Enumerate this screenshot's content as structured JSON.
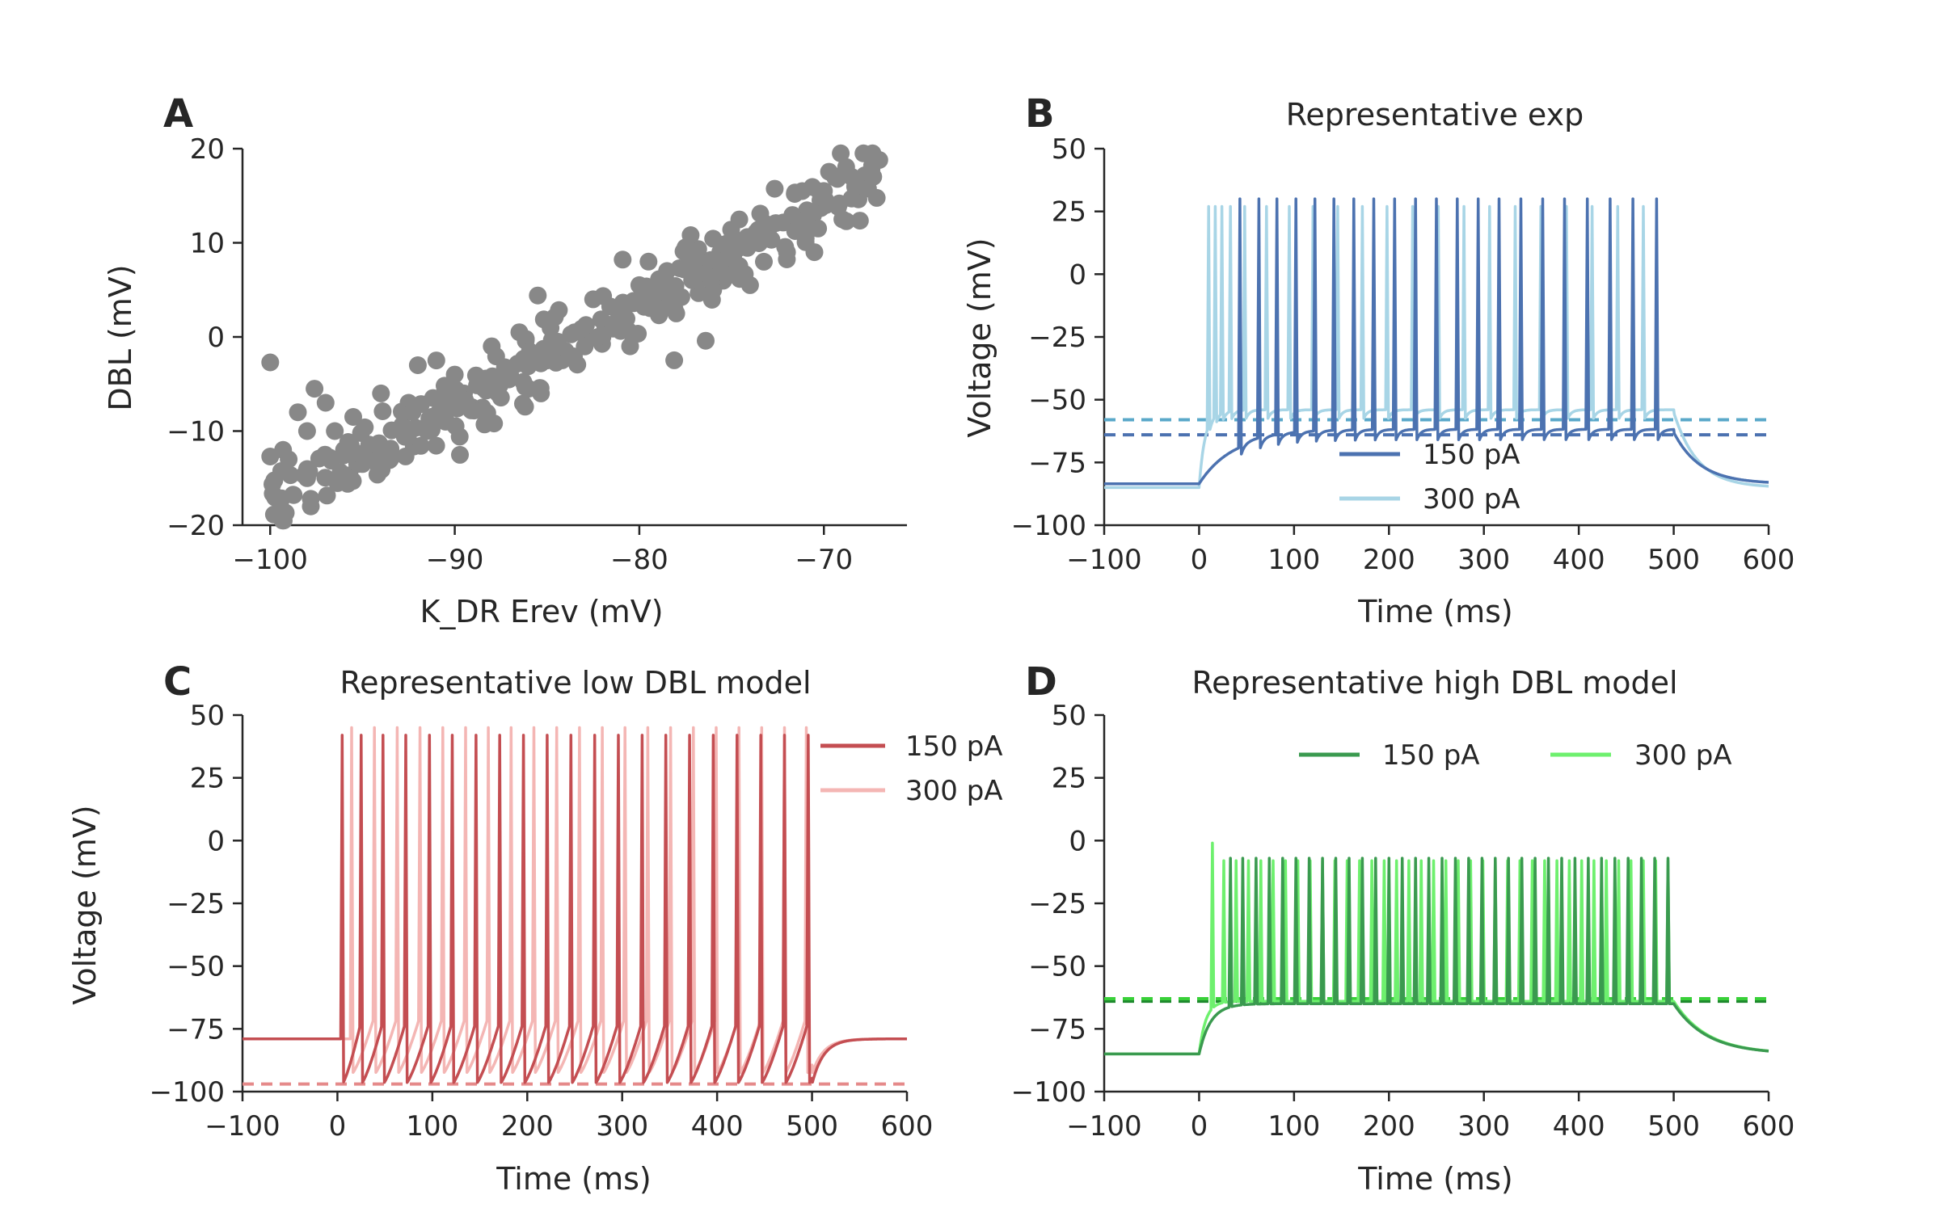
{
  "chart_data": [
    {
      "panel": "A",
      "type": "scatter",
      "title": "",
      "xlabel": "K_DR Erev (mV)",
      "ylabel": "DBL (mV)",
      "xlim": [
        -101.5,
        -65.5
      ],
      "ylim": [
        -20,
        20
      ],
      "xticks": [
        -100,
        -90,
        -80,
        -70
      ],
      "yticks": [
        -20,
        -10,
        0,
        10,
        20
      ],
      "grid": false,
      "point_color": "#888888",
      "trend": {
        "slope": 1.05,
        "intercept": 87.5,
        "x_range": [
          -100,
          -67
        ],
        "noise_sd": 1.9,
        "count": 300
      },
      "points": [
        {
          "x": -100,
          "y": -2.7
        },
        {
          "x": -100,
          "y": -12.7
        },
        {
          "x": -99.3,
          "y": -12
        },
        {
          "x": -99,
          "y": -13
        },
        {
          "x": -98.5,
          "y": -8
        },
        {
          "x": -98,
          "y": -10
        },
        {
          "x": -98,
          "y": -15
        },
        {
          "x": -97.8,
          "y": -18
        },
        {
          "x": -97.8,
          "y": -17.2
        },
        {
          "x": -97.6,
          "y": -5.5
        },
        {
          "x": -97,
          "y": -7
        },
        {
          "x": -96.5,
          "y": -10
        },
        {
          "x": -96,
          "y": -12
        },
        {
          "x": -95.5,
          "y": -8.5
        },
        {
          "x": -95,
          "y": -13.5
        },
        {
          "x": -94,
          "y": -6
        },
        {
          "x": -93.5,
          "y": -13
        },
        {
          "x": -92.5,
          "y": -7
        },
        {
          "x": -92,
          "y": -3
        },
        {
          "x": -91.5,
          "y": -10
        },
        {
          "x": -91,
          "y": -2.5
        },
        {
          "x": -90.5,
          "y": -9
        },
        {
          "x": -90,
          "y": -4
        },
        {
          "x": -89.5,
          "y": -6
        },
        {
          "x": -88.5,
          "y": -7.5
        },
        {
          "x": -88,
          "y": -1
        },
        {
          "x": -87,
          "y": -4
        },
        {
          "x": -86.5,
          "y": 0.5
        },
        {
          "x": -86,
          "y": -5.5
        },
        {
          "x": -85.5,
          "y": 4.4
        },
        {
          "x": -85,
          "y": -2
        },
        {
          "x": -84,
          "y": -1.5
        },
        {
          "x": -83.5,
          "y": 0.5
        },
        {
          "x": -82.5,
          "y": 4
        },
        {
          "x": -82,
          "y": 0
        },
        {
          "x": -81,
          "y": 1.8
        },
        {
          "x": -80.5,
          "y": -1
        },
        {
          "x": -80,
          "y": 5.5
        },
        {
          "x": -79.5,
          "y": 8
        },
        {
          "x": -78.5,
          "y": 7
        },
        {
          "x": -78,
          "y": 2.5
        },
        {
          "x": -77.5,
          "y": 9.5
        },
        {
          "x": -76,
          "y": 5
        },
        {
          "x": -75.5,
          "y": 7.5
        },
        {
          "x": -74.5,
          "y": 10.2
        },
        {
          "x": -74,
          "y": 5.5
        },
        {
          "x": -73,
          "y": 11.5
        },
        {
          "x": -72,
          "y": 9
        },
        {
          "x": -71,
          "y": 12
        },
        {
          "x": -70,
          "y": 15.5
        },
        {
          "x": -69,
          "y": 12.5
        },
        {
          "x": -68.5,
          "y": 17
        },
        {
          "x": -67.7,
          "y": 15.8
        },
        {
          "x": -67,
          "y": 18.8
        }
      ]
    },
    {
      "panel": "B",
      "type": "line",
      "title": "Representative exp",
      "xlabel": "Time (ms)",
      "ylabel": "Voltage (mV)",
      "xlim": [
        -100,
        600
      ],
      "ylim": [
        -100,
        50
      ],
      "xticks": [
        -100,
        0,
        100,
        200,
        300,
        400,
        500,
        600
      ],
      "yticks": [
        -100,
        -75,
        -50,
        -25,
        0,
        25,
        50
      ],
      "legend_placement": "lower-center",
      "series": [
        {
          "name": "150 pA",
          "color": "#4c72b0",
          "rest": -83.5,
          "plateau": -63,
          "dashed_level": -64,
          "spike_peak": 30,
          "spike_times": [
            43,
            63,
            82,
            102,
            122,
            142,
            163,
            184,
            206,
            228,
            250,
            272,
            294,
            316,
            339,
            362,
            385,
            409,
            433,
            457,
            482
          ]
        },
        {
          "name": "300 pA",
          "color": "#a8d5e6",
          "rest": -85,
          "plateau": -55,
          "dashed_level": -58,
          "dashed_color": "#5aa8c9",
          "spike_peak": 27,
          "spike_times": [
            10,
            17,
            24,
            33,
            48,
            71,
            95,
            120,
            146,
            172,
            198,
            225,
            252,
            279,
            306,
            333,
            360,
            387,
            414,
            441,
            468
          ]
        }
      ]
    },
    {
      "panel": "C",
      "type": "line",
      "title": "Representative low DBL model",
      "xlabel": "Time (ms)",
      "ylabel": "Voltage (mV)",
      "xlim": [
        -100,
        600
      ],
      "ylim": [
        -100,
        50
      ],
      "xticks": [
        -100,
        0,
        100,
        200,
        300,
        400,
        500,
        600
      ],
      "yticks": [
        -100,
        -75,
        -50,
        -25,
        0,
        25,
        50
      ],
      "legend_placement": "upper-right",
      "series": [
        {
          "name": "150 pA",
          "color": "#c44e52",
          "rest": -79,
          "trough": -97,
          "dashed_level": -97,
          "dashed_color": "#e58a8a",
          "spike_peak": 42,
          "spike_times": [
            5,
            25,
            48,
            72,
            97,
            121,
            146,
            171,
            196,
            221,
            246,
            271,
            296,
            321,
            346,
            371,
            396,
            421,
            446,
            471,
            496
          ]
        },
        {
          "name": "300 pA",
          "color": "#f4b6b4",
          "rest": -79,
          "trough": -93,
          "spike_peak": 45,
          "spike_times": [
            15,
            39,
            63,
            87,
            111,
            135,
            159,
            183,
            207,
            231,
            255,
            279,
            303,
            327,
            351,
            375,
            399,
            423,
            447,
            471,
            494
          ]
        }
      ]
    },
    {
      "panel": "D",
      "type": "line",
      "title": "Representative high DBL model",
      "xlabel": "Time (ms)",
      "ylabel": "",
      "xlim": [
        -100,
        600
      ],
      "ylim": [
        -100,
        50
      ],
      "xticks": [
        -100,
        0,
        100,
        200,
        300,
        400,
        500,
        600
      ],
      "yticks": [
        -100,
        -75,
        -50,
        -25,
        0,
        25,
        50
      ],
      "legend_placement": "upper-right",
      "series": [
        {
          "name": "150 pA",
          "color": "#3a9a4f",
          "rest": -85,
          "plateau": -65,
          "dashed_level": -64,
          "dashed_color": "#1f8a2e",
          "spike_peak": -7,
          "spike_times": [
            33,
            46,
            60,
            74,
            88,
            102,
            116,
            130,
            144,
            158,
            172,
            186,
            200,
            214,
            228,
            242,
            256,
            270,
            284,
            298,
            312,
            326,
            340,
            354,
            368,
            382,
            396,
            410,
            424,
            438,
            452,
            466,
            480,
            494
          ]
        },
        {
          "name": "300 pA",
          "color": "#6ef06e",
          "rest": -85,
          "plateau": -64,
          "dashed_level": -63,
          "dashed_color": "#39d039",
          "spike_peak": -8,
          "spike_times": [
            14,
            26,
            39,
            52,
            65,
            78,
            91,
            104,
            117,
            130,
            143,
            156,
            169,
            182,
            195,
            208,
            221,
            234,
            247,
            260,
            273,
            286,
            299,
            312,
            325,
            338,
            351,
            364,
            377,
            390,
            403,
            416,
            429,
            442,
            455,
            468,
            481,
            494
          ]
        }
      ],
      "first_spike_peak_300pA": -1
    }
  ]
}
